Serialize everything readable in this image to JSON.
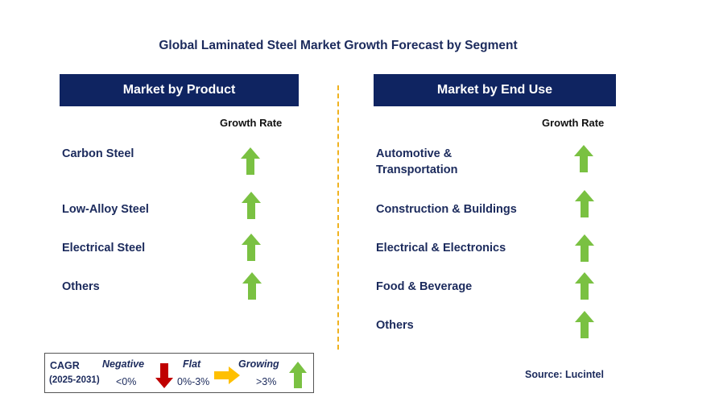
{
  "title": "Global Laminated Steel Market Growth Forecast by Segment",
  "colors": {
    "header_bg": "#0f2461",
    "up_arrow": "#7ac142",
    "down_arrow": "#c00000",
    "flat_arrow": "#ffc000",
    "divider": "#f0b21f"
  },
  "left_panel": {
    "header": "Market by Product",
    "growth_label": "Growth Rate",
    "items": [
      {
        "label": "Carbon Steel",
        "trend": "up"
      },
      {
        "label": "Low-Alloy Steel",
        "trend": "up"
      },
      {
        "label": "Electrical Steel",
        "trend": "up"
      },
      {
        "label": "Others",
        "trend": "up"
      }
    ]
  },
  "right_panel": {
    "header": "Market by End Use",
    "growth_label": "Growth Rate",
    "items": [
      {
        "label_line1": "Automotive &",
        "label_line2": "Transportation",
        "trend": "up"
      },
      {
        "label": "Construction & Buildings",
        "trend": "up"
      },
      {
        "label": "Electrical & Electronics",
        "trend": "up"
      },
      {
        "label": "Food & Beverage",
        "trend": "up"
      },
      {
        "label": "Others",
        "trend": "up"
      }
    ]
  },
  "legend": {
    "cagr": "CAGR",
    "period": "(2025-2031)",
    "negative": "Negative",
    "negative_range": "<0%",
    "flat": "Flat",
    "flat_range": "0%-3%",
    "growing": "Growing",
    "growing_range": ">3%"
  },
  "source": "Source: Lucintel"
}
